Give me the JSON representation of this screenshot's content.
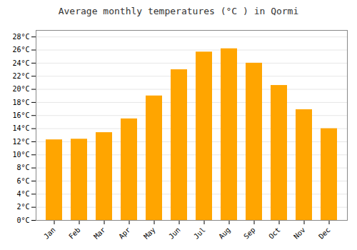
{
  "chart_data": {
    "type": "bar",
    "title": "Average monthly temperatures (°C ) in Qormi",
    "categories": [
      "Jan",
      "Feb",
      "Mar",
      "Apr",
      "May",
      "Jun",
      "Jul",
      "Aug",
      "Sep",
      "Oct",
      "Nov",
      "Dec"
    ],
    "values": [
      12.3,
      12.4,
      13.4,
      15.5,
      19.0,
      23.0,
      25.7,
      26.2,
      24.0,
      20.6,
      16.9,
      14.0
    ],
    "color": "#FFA500",
    "ylim": [
      0,
      29
    ],
    "yticks": [
      {
        "value": 0,
        "label": "0°C"
      },
      {
        "value": 2,
        "label": "2°C"
      },
      {
        "value": 4,
        "label": "4°C"
      },
      {
        "value": 6,
        "label": "6°C"
      },
      {
        "value": 8,
        "label": "8°C"
      },
      {
        "value": 10,
        "label": "10°C"
      },
      {
        "value": 12,
        "label": "12°C"
      },
      {
        "value": 14,
        "label": "14°C"
      },
      {
        "value": 16,
        "label": "16°C"
      },
      {
        "value": 18,
        "label": "18°C"
      },
      {
        "value": 20,
        "label": "20°C"
      },
      {
        "value": 22,
        "label": "22°C"
      },
      {
        "value": 24,
        "label": "24°C"
      },
      {
        "value": 26,
        "label": "26°C"
      },
      {
        "value": 28,
        "label": "28°C"
      }
    ],
    "grid": true
  }
}
